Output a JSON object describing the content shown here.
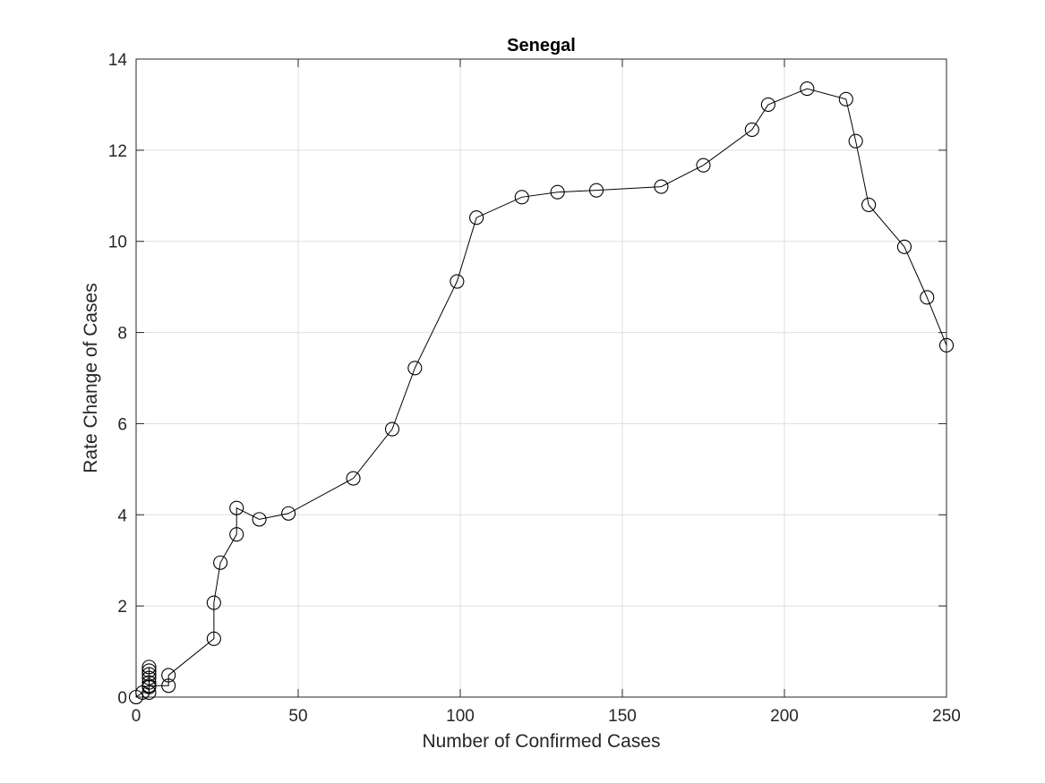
{
  "chart_data": {
    "type": "line",
    "title": "Senegal",
    "xlabel": "Number of Confirmed Cases",
    "ylabel": "Rate Change of Cases",
    "xlim": [
      0,
      250
    ],
    "ylim": [
      0,
      14
    ],
    "xticks": [
      0,
      50,
      100,
      150,
      200,
      250
    ],
    "yticks": [
      0,
      2,
      4,
      6,
      8,
      10,
      12,
      14
    ],
    "xtick_labels": [
      "0",
      "50",
      "100",
      "150",
      "200",
      "250"
    ],
    "ytick_labels": [
      "0",
      "2",
      "4",
      "6",
      "8",
      "10",
      "12",
      "14"
    ],
    "grid": true,
    "marker": "circle",
    "line_color": "#000000",
    "series": [
      {
        "x": [
          0,
          2,
          4,
          4,
          4,
          4,
          4,
          4,
          4,
          4,
          10,
          10,
          24,
          24,
          26,
          31,
          31,
          38,
          47,
          67,
          79,
          86,
          99,
          105,
          119,
          130,
          142,
          162,
          175,
          190,
          195,
          207,
          219,
          222,
          226,
          237,
          244,
          250
        ],
        "y": [
          0,
          0.1,
          0.1,
          0.22,
          0.32,
          0.42,
          0.5,
          0.58,
          0.66,
          0.25,
          0.25,
          0.48,
          1.28,
          2.07,
          2.95,
          3.57,
          4.15,
          3.9,
          4.03,
          4.8,
          5.88,
          7.22,
          9.12,
          10.52,
          10.97,
          11.08,
          11.12,
          11.2,
          11.67,
          12.45,
          13.0,
          13.35,
          13.12,
          12.2,
          10.8,
          9.88,
          8.77,
          7.72
        ]
      }
    ]
  }
}
